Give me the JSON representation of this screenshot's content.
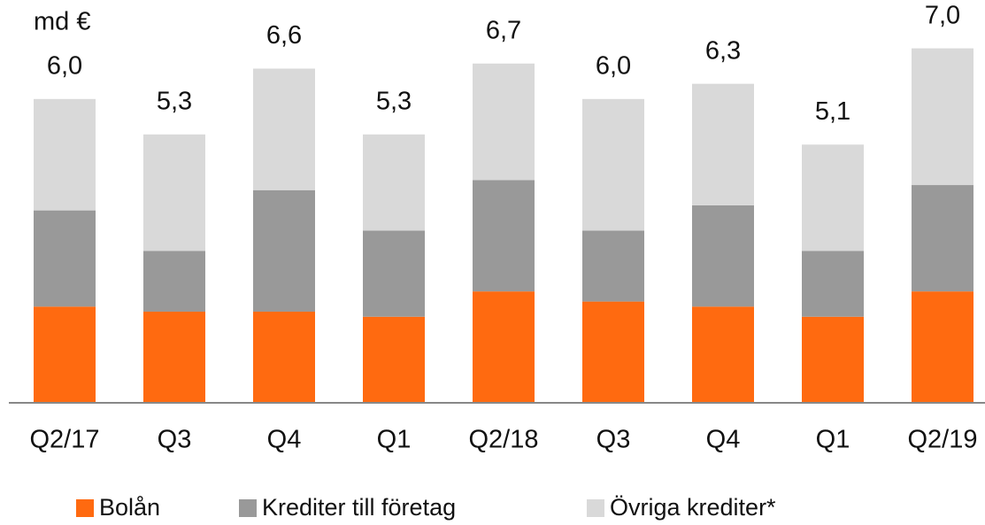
{
  "chart_data": {
    "type": "stacked_bar",
    "unit_label": "md €",
    "categories": [
      "Q2/17",
      "Q3",
      "Q4",
      "Q1",
      "Q2/18",
      "Q3",
      "Q4",
      "Q1",
      "Q2/19"
    ],
    "series": [
      {
        "name": "Bolån",
        "color": "#ff6a10",
        "values": [
          1.9,
          1.8,
          1.8,
          1.7,
          2.2,
          2.0,
          1.9,
          1.7,
          2.2
        ]
      },
      {
        "name": "Krediter till företag",
        "color": "#999999",
        "values": [
          1.9,
          1.2,
          2.4,
          1.7,
          2.2,
          1.4,
          2.0,
          1.3,
          2.1
        ]
      },
      {
        "name": "Övriga krediter*",
        "color": "#d9d9d9",
        "values": [
          2.2,
          2.3,
          2.4,
          1.9,
          2.3,
          2.6,
          2.4,
          2.1,
          2.7
        ]
      }
    ],
    "totals": [
      6.0,
      5.3,
      6.6,
      5.3,
      6.7,
      6.0,
      6.3,
      5.1,
      7.0
    ],
    "totals_labels": [
      "6,0",
      "5,3",
      "6,6",
      "5,3",
      "6,7",
      "6,0",
      "6,3",
      "5,1",
      "7,0"
    ]
  }
}
